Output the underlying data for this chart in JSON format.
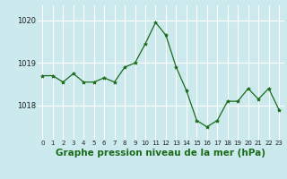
{
  "x": [
    0,
    1,
    2,
    3,
    4,
    5,
    6,
    7,
    8,
    9,
    10,
    11,
    12,
    13,
    14,
    15,
    16,
    17,
    18,
    19,
    20,
    21,
    22,
    23
  ],
  "y": [
    1018.7,
    1018.7,
    1018.55,
    1018.75,
    1018.55,
    1018.55,
    1018.65,
    1018.55,
    1018.9,
    1019.0,
    1019.45,
    1019.95,
    1019.65,
    1018.9,
    1018.35,
    1017.65,
    1017.5,
    1017.65,
    1018.1,
    1018.1,
    1018.4,
    1018.15,
    1018.4,
    1017.9
  ],
  "line_color": "#1a6b1a",
  "marker": "*",
  "marker_size": 3,
  "bg_color": "#cce9ed",
  "grid_color": "#ffffff",
  "xlabel": "Graphe pression niveau de la mer (hPa)",
  "xlabel_fontsize": 7.5,
  "xlabel_bold": true,
  "tick_labels": [
    "0",
    "1",
    "2",
    "3",
    "4",
    "5",
    "6",
    "7",
    "8",
    "9",
    "10",
    "11",
    "12",
    "13",
    "14",
    "15",
    "16",
    "17",
    "18",
    "19",
    "20",
    "21",
    "22",
    "23"
  ],
  "yticks": [
    1018,
    1019,
    1020
  ],
  "ylim": [
    1017.2,
    1020.35
  ],
  "xlim": [
    -0.5,
    23.5
  ]
}
